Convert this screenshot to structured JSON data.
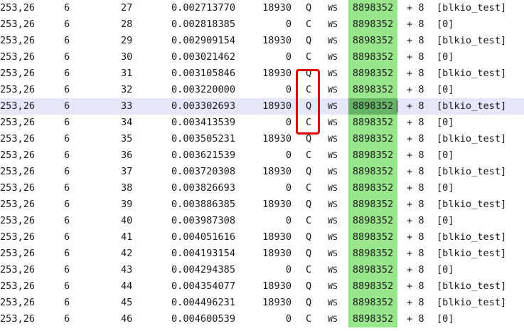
{
  "trace": {
    "rows": [
      {
        "dev": "253,26",
        "cpu": "6",
        "seq": "27",
        "time": "0.002713770",
        "pid": "18930",
        "action": "Q",
        "rwbs": "WS",
        "sector": "8898352",
        "size": "+ 8",
        "proc": "[blkio_test]"
      },
      {
        "dev": "253,26",
        "cpu": "6",
        "seq": "28",
        "time": "0.002818385",
        "pid": "0",
        "action": "C",
        "rwbs": "WS",
        "sector": "8898352",
        "size": "+ 8",
        "proc": "[0]"
      },
      {
        "dev": "253,26",
        "cpu": "6",
        "seq": "29",
        "time": "0.002909154",
        "pid": "18930",
        "action": "Q",
        "rwbs": "WS",
        "sector": "8898352",
        "size": "+ 8",
        "proc": "[blkio_test]"
      },
      {
        "dev": "253,26",
        "cpu": "6",
        "seq": "30",
        "time": "0.003021462",
        "pid": "0",
        "action": "C",
        "rwbs": "WS",
        "sector": "8898352",
        "size": "+ 8",
        "proc": "[0]"
      },
      {
        "dev": "253,26",
        "cpu": "6",
        "seq": "31",
        "time": "0.003105846",
        "pid": "18930",
        "action": "Q",
        "rwbs": "WS",
        "sector": "8898352",
        "size": "+ 8",
        "proc": "[blkio_test]"
      },
      {
        "dev": "253,26",
        "cpu": "6",
        "seq": "32",
        "time": "0.003220000",
        "pid": "0",
        "action": "C",
        "rwbs": "WS",
        "sector": "8898352",
        "size": "+ 8",
        "proc": "[0]"
      },
      {
        "dev": "253,26",
        "cpu": "6",
        "seq": "33",
        "time": "0.003302693",
        "pid": "18930",
        "action": "Q",
        "rwbs": "WS",
        "sector": "8898352",
        "size": "+ 8",
        "proc": "[blkio_test]"
      },
      {
        "dev": "253,26",
        "cpu": "6",
        "seq": "34",
        "time": "0.003413539",
        "pid": "0",
        "action": "C",
        "rwbs": "WS",
        "sector": "8898352",
        "size": "+ 8",
        "proc": "[0]"
      },
      {
        "dev": "253,26",
        "cpu": "6",
        "seq": "35",
        "time": "0.003505231",
        "pid": "18930",
        "action": "Q",
        "rwbs": "WS",
        "sector": "8898352",
        "size": "+ 8",
        "proc": "[blkio_test]"
      },
      {
        "dev": "253,26",
        "cpu": "6",
        "seq": "36",
        "time": "0.003621539",
        "pid": "0",
        "action": "C",
        "rwbs": "WS",
        "sector": "8898352",
        "size": "+ 8",
        "proc": "[0]"
      },
      {
        "dev": "253,26",
        "cpu": "6",
        "seq": "37",
        "time": "0.003720308",
        "pid": "18930",
        "action": "Q",
        "rwbs": "WS",
        "sector": "8898352",
        "size": "+ 8",
        "proc": "[blkio_test]"
      },
      {
        "dev": "253,26",
        "cpu": "6",
        "seq": "38",
        "time": "0.003826693",
        "pid": "0",
        "action": "C",
        "rwbs": "WS",
        "sector": "8898352",
        "size": "+ 8",
        "proc": "[0]"
      },
      {
        "dev": "253,26",
        "cpu": "6",
        "seq": "39",
        "time": "0.003886385",
        "pid": "18930",
        "action": "Q",
        "rwbs": "WS",
        "sector": "8898352",
        "size": "+ 8",
        "proc": "[blkio_test]"
      },
      {
        "dev": "253,26",
        "cpu": "6",
        "seq": "40",
        "time": "0.003987308",
        "pid": "0",
        "action": "C",
        "rwbs": "WS",
        "sector": "8898352",
        "size": "+ 8",
        "proc": "[0]"
      },
      {
        "dev": "253,26",
        "cpu": "6",
        "seq": "41",
        "time": "0.004051616",
        "pid": "18930",
        "action": "Q",
        "rwbs": "WS",
        "sector": "8898352",
        "size": "+ 8",
        "proc": "[blkio_test]"
      },
      {
        "dev": "253,26",
        "cpu": "6",
        "seq": "42",
        "time": "0.004193154",
        "pid": "18930",
        "action": "Q",
        "rwbs": "WS",
        "sector": "8898352",
        "size": "+ 8",
        "proc": "[blkio_test]"
      },
      {
        "dev": "253,26",
        "cpu": "6",
        "seq": "43",
        "time": "0.004294385",
        "pid": "0",
        "action": "C",
        "rwbs": "WS",
        "sector": "8898352",
        "size": "+ 8",
        "proc": "[0]"
      },
      {
        "dev": "253,26",
        "cpu": "6",
        "seq": "44",
        "time": "0.004354077",
        "pid": "18930",
        "action": "Q",
        "rwbs": "WS",
        "sector": "8898352",
        "size": "+ 8",
        "proc": "[blkio_test]"
      },
      {
        "dev": "253,26",
        "cpu": "6",
        "seq": "45",
        "time": "0.004496231",
        "pid": "18930",
        "action": "Q",
        "rwbs": "WS",
        "sector": "8898352",
        "size": "+ 8",
        "proc": "[blkio_test]"
      },
      {
        "dev": "253,26",
        "cpu": "6",
        "seq": "46",
        "time": "0.004600539",
        "pid": "0",
        "action": "C",
        "rwbs": "WS",
        "sector": "8898352",
        "size": "+ 8",
        "proc": "[0]"
      }
    ],
    "cursor_row": 6,
    "annotated_rows": [
      4,
      5,
      6,
      7
    ],
    "colors": {
      "sector_highlight": "#99e68c",
      "sector_cursor": "#66b266",
      "cursor_row": "#e6e6fa",
      "annotation_box": "#dd0000"
    }
  }
}
